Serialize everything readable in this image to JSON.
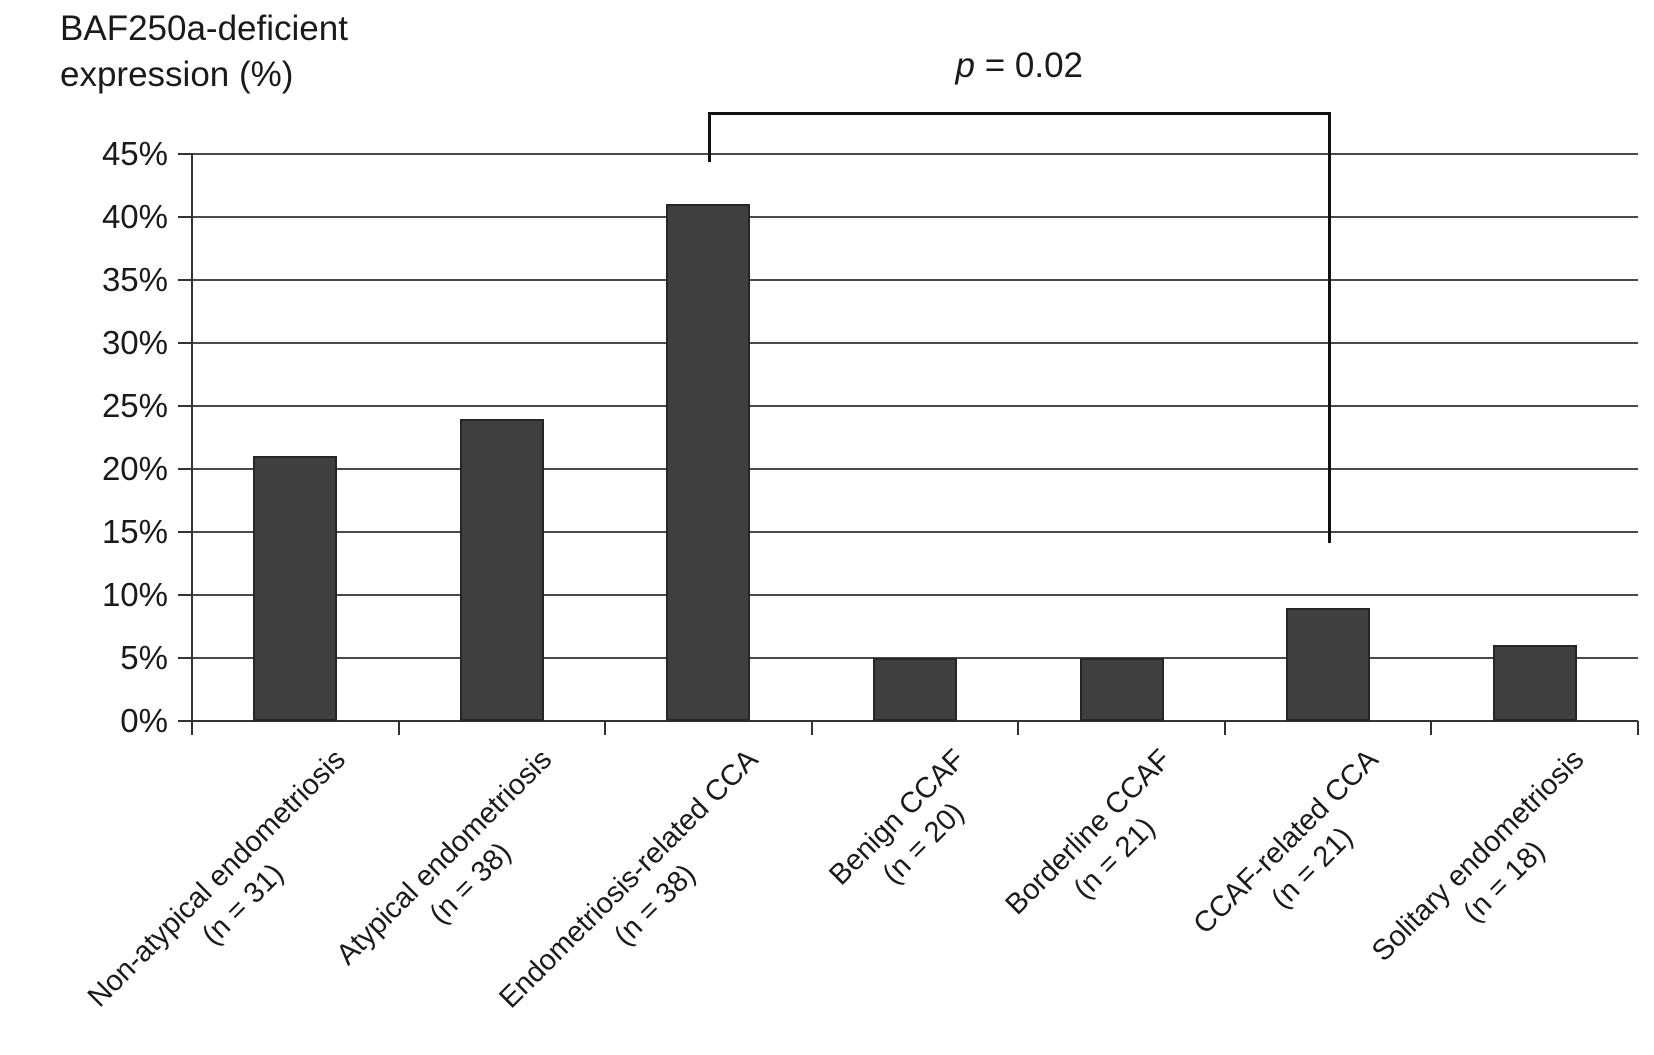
{
  "title": {
    "line1": "BAF250a-deficient",
    "line2": "expression (%)"
  },
  "annotation": {
    "p_italic": "p",
    "p_rest": " = 0.02"
  },
  "chart_data": {
    "type": "bar",
    "title": "BAF250a-deficient expression (%)",
    "categories": [
      "Non-atypical endometriosis",
      "Atypical endometriosis",
      "Endometriosis-related CCA",
      "Benign CCAF",
      "Borderline CCAF",
      "CCAF-related CCA",
      "Solitary endometriosis"
    ],
    "n_labels": [
      "(n = 31)",
      "(n = 38)",
      "(n = 38)",
      "(n = 20)",
      "(n = 21)",
      "(n = 21)",
      "(n = 18)"
    ],
    "values": [
      21,
      24,
      41,
      5,
      5,
      9,
      6
    ],
    "value_unit": "%",
    "ylim": [
      0,
      45
    ],
    "ytick_labels": [
      "45%",
      "40%",
      "35%",
      "30%",
      "25%",
      "20%",
      "15%",
      "10%",
      "5%",
      "0%"
    ],
    "grid": "horizontal",
    "legend": "none",
    "bar_color": "#3f3f3f",
    "bar_border_color": "#262626",
    "gridline_color": "#4a4a4a",
    "axis_color": "#333333",
    "bracket_color": "#111111",
    "significance": {
      "label": "p = 0.02",
      "from_index": 2,
      "to_index": 5
    }
  }
}
